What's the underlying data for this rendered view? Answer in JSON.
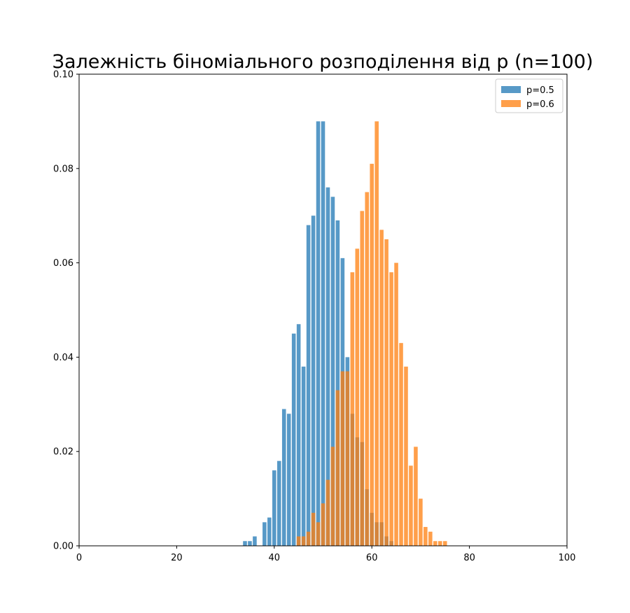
{
  "chart_data": {
    "type": "bar",
    "title": "Залежність біноміального розподілення від p (n=100)",
    "xlabel": "",
    "ylabel": "",
    "xlim": [
      0,
      100
    ],
    "ylim": [
      0,
      0.1
    ],
    "x_ticks": [
      "0",
      "20",
      "40",
      "60",
      "80",
      "100"
    ],
    "x_tick_values": [
      0,
      20,
      40,
      60,
      80,
      100
    ],
    "y_ticks": [
      "0.00",
      "0.02",
      "0.04",
      "0.06",
      "0.08",
      "0.10"
    ],
    "y_tick_values": [
      0,
      0.02,
      0.04,
      0.06,
      0.08,
      0.1
    ],
    "grid": false,
    "legend_position": "upper-right",
    "bar_width": 0.8,
    "series": [
      {
        "name": "p=0.5",
        "color": "#1f77b4",
        "opacity": 0.75,
        "x": [
          34,
          35,
          36,
          38,
          39,
          40,
          41,
          42,
          43,
          44,
          45,
          46,
          47,
          48,
          49,
          50,
          51,
          52,
          53,
          54,
          55,
          56,
          57,
          58,
          59,
          60,
          61,
          62,
          63,
          64
        ],
        "values": [
          0.001,
          0.001,
          0.002,
          0.005,
          0.006,
          0.016,
          0.018,
          0.029,
          0.028,
          0.045,
          0.047,
          0.038,
          0.068,
          0.07,
          0.09,
          0.09,
          0.076,
          0.074,
          0.069,
          0.061,
          0.04,
          0.028,
          0.023,
          0.022,
          0.012,
          0.007,
          0.005,
          0.005,
          0.002,
          0.001
        ]
      },
      {
        "name": "p=0.6",
        "color": "#ff7f0e",
        "opacity": 0.75,
        "x": [
          45,
          46,
          47,
          48,
          49,
          50,
          51,
          52,
          53,
          54,
          55,
          56,
          57,
          58,
          59,
          60,
          61,
          62,
          63,
          64,
          65,
          66,
          67,
          68,
          69,
          70,
          71,
          72,
          73,
          74,
          75
        ],
        "values": [
          0.002,
          0.002,
          0.003,
          0.007,
          0.005,
          0.009,
          0.014,
          0.021,
          0.033,
          0.037,
          0.037,
          0.058,
          0.063,
          0.071,
          0.075,
          0.081,
          0.09,
          0.067,
          0.065,
          0.058,
          0.06,
          0.043,
          0.038,
          0.017,
          0.021,
          0.01,
          0.004,
          0.003,
          0.001,
          0.001,
          0.001
        ]
      }
    ]
  }
}
